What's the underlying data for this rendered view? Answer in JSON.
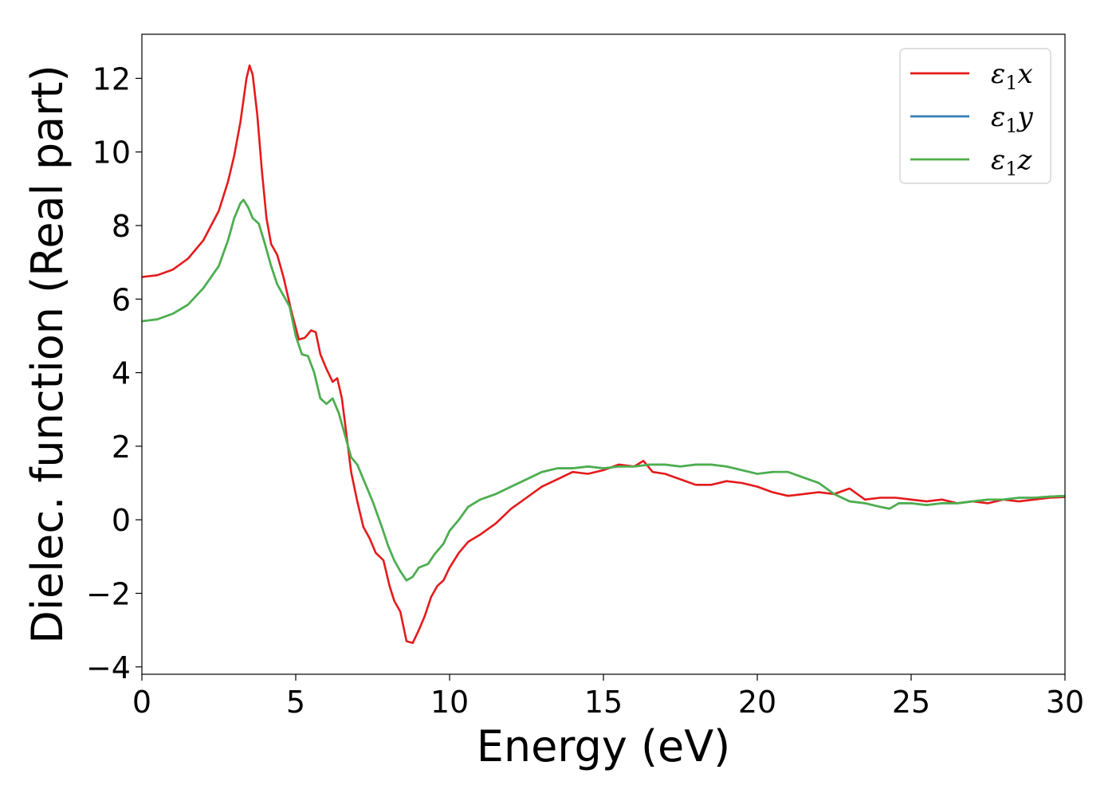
{
  "chart_data": {
    "type": "line",
    "xlabel": "Energy (eV)",
    "ylabel": "Dielec. function (Real part)",
    "xlim": [
      0,
      30
    ],
    "ylim": [
      -4.2,
      13.2
    ],
    "xticks": [
      0,
      5,
      10,
      15,
      20,
      25,
      30
    ],
    "yticks": [
      -4,
      -2,
      0,
      2,
      4,
      6,
      8,
      10,
      12
    ],
    "xtick_labels": [
      "0",
      "5",
      "10",
      "15",
      "20",
      "25",
      "30"
    ],
    "ytick_labels": [
      "−4",
      "−2",
      "0",
      "2",
      "4",
      "6",
      "8",
      "10",
      "12"
    ],
    "grid": false,
    "legend_position": "top-right",
    "series": [
      {
        "name": "ε1x",
        "legend_base": "ε",
        "legend_sub": "1",
        "legend_suffix": "x",
        "color": "#e41a1c",
        "points": [
          [
            0,
            6.6
          ],
          [
            0.5,
            6.65
          ],
          [
            1.0,
            6.8
          ],
          [
            1.5,
            7.1
          ],
          [
            2.0,
            7.6
          ],
          [
            2.5,
            8.4
          ],
          [
            2.8,
            9.2
          ],
          [
            3.0,
            9.9
          ],
          [
            3.2,
            10.8
          ],
          [
            3.4,
            12.0
          ],
          [
            3.5,
            12.35
          ],
          [
            3.6,
            12.1
          ],
          [
            3.75,
            11.0
          ],
          [
            3.9,
            9.5
          ],
          [
            4.05,
            8.2
          ],
          [
            4.2,
            7.5
          ],
          [
            4.4,
            7.2
          ],
          [
            4.6,
            6.6
          ],
          [
            4.85,
            5.7
          ],
          [
            5.1,
            4.9
          ],
          [
            5.3,
            4.95
          ],
          [
            5.5,
            5.15
          ],
          [
            5.65,
            5.1
          ],
          [
            5.8,
            4.5
          ],
          [
            6.0,
            4.1
          ],
          [
            6.2,
            3.75
          ],
          [
            6.35,
            3.85
          ],
          [
            6.5,
            3.3
          ],
          [
            6.65,
            2.3
          ],
          [
            6.8,
            1.3
          ],
          [
            7.0,
            0.5
          ],
          [
            7.2,
            -0.2
          ],
          [
            7.4,
            -0.5
          ],
          [
            7.6,
            -0.9
          ],
          [
            7.85,
            -1.1
          ],
          [
            8.05,
            -1.8
          ],
          [
            8.2,
            -2.2
          ],
          [
            8.4,
            -2.5
          ],
          [
            8.6,
            -3.3
          ],
          [
            8.8,
            -3.35
          ],
          [
            9.0,
            -3.0
          ],
          [
            9.2,
            -2.6
          ],
          [
            9.4,
            -2.1
          ],
          [
            9.6,
            -1.8
          ],
          [
            9.8,
            -1.65
          ],
          [
            10.0,
            -1.3
          ],
          [
            10.3,
            -0.9
          ],
          [
            10.6,
            -0.6
          ],
          [
            11.0,
            -0.4
          ],
          [
            11.5,
            -0.1
          ],
          [
            12.0,
            0.3
          ],
          [
            12.5,
            0.6
          ],
          [
            13.0,
            0.9
          ],
          [
            13.5,
            1.1
          ],
          [
            14.0,
            1.3
          ],
          [
            14.5,
            1.25
          ],
          [
            15.0,
            1.35
          ],
          [
            15.5,
            1.5
          ],
          [
            16.0,
            1.45
          ],
          [
            16.3,
            1.6
          ],
          [
            16.6,
            1.3
          ],
          [
            17.0,
            1.25
          ],
          [
            17.5,
            1.1
          ],
          [
            18.0,
            0.95
          ],
          [
            18.5,
            0.95
          ],
          [
            19.0,
            1.05
          ],
          [
            19.5,
            1.0
          ],
          [
            20.0,
            0.9
          ],
          [
            20.5,
            0.75
          ],
          [
            21.0,
            0.65
          ],
          [
            21.5,
            0.7
          ],
          [
            22.0,
            0.75
          ],
          [
            22.5,
            0.7
          ],
          [
            23.0,
            0.85
          ],
          [
            23.5,
            0.55
          ],
          [
            24.0,
            0.6
          ],
          [
            24.5,
            0.6
          ],
          [
            25.0,
            0.55
          ],
          [
            25.5,
            0.5
          ],
          [
            26.0,
            0.55
          ],
          [
            26.5,
            0.45
          ],
          [
            27.0,
            0.5
          ],
          [
            27.5,
            0.45
          ],
          [
            28.0,
            0.55
          ],
          [
            28.5,
            0.5
          ],
          [
            29.0,
            0.55
          ],
          [
            29.5,
            0.6
          ],
          [
            30.0,
            0.62
          ]
        ]
      },
      {
        "name": "ε1y",
        "legend_base": "ε",
        "legend_sub": "1",
        "legend_suffix": "y",
        "color": "#377eb8",
        "points": [
          [
            0,
            5.4
          ],
          [
            0.5,
            5.45
          ],
          [
            1.0,
            5.6
          ],
          [
            1.5,
            5.85
          ],
          [
            2.0,
            6.3
          ],
          [
            2.5,
            6.9
          ],
          [
            2.8,
            7.6
          ],
          [
            3.0,
            8.2
          ],
          [
            3.2,
            8.6
          ],
          [
            3.3,
            8.7
          ],
          [
            3.45,
            8.5
          ],
          [
            3.6,
            8.2
          ],
          [
            3.8,
            8.05
          ],
          [
            4.0,
            7.5
          ],
          [
            4.2,
            6.9
          ],
          [
            4.4,
            6.4
          ],
          [
            4.6,
            6.1
          ],
          [
            4.8,
            5.8
          ],
          [
            5.0,
            5.0
          ],
          [
            5.2,
            4.5
          ],
          [
            5.4,
            4.45
          ],
          [
            5.6,
            4.0
          ],
          [
            5.8,
            3.3
          ],
          [
            6.0,
            3.15
          ],
          [
            6.2,
            3.3
          ],
          [
            6.4,
            2.9
          ],
          [
            6.6,
            2.3
          ],
          [
            6.8,
            1.7
          ],
          [
            7.0,
            1.5
          ],
          [
            7.2,
            1.1
          ],
          [
            7.5,
            0.5
          ],
          [
            7.8,
            -0.2
          ],
          [
            8.0,
            -0.7
          ],
          [
            8.2,
            -1.1
          ],
          [
            8.4,
            -1.4
          ],
          [
            8.6,
            -1.65
          ],
          [
            8.8,
            -1.55
          ],
          [
            9.0,
            -1.3
          ],
          [
            9.3,
            -1.2
          ],
          [
            9.5,
            -0.95
          ],
          [
            9.8,
            -0.65
          ],
          [
            10.0,
            -0.3
          ],
          [
            10.3,
            0.0
          ],
          [
            10.6,
            0.35
          ],
          [
            11.0,
            0.55
          ],
          [
            11.5,
            0.7
          ],
          [
            12.0,
            0.9
          ],
          [
            12.5,
            1.1
          ],
          [
            13.0,
            1.3
          ],
          [
            13.5,
            1.4
          ],
          [
            14.0,
            1.4
          ],
          [
            14.5,
            1.45
          ],
          [
            15.0,
            1.4
          ],
          [
            15.5,
            1.45
          ],
          [
            16.0,
            1.45
          ],
          [
            16.5,
            1.5
          ],
          [
            17.0,
            1.5
          ],
          [
            17.5,
            1.45
          ],
          [
            18.0,
            1.5
          ],
          [
            18.5,
            1.5
          ],
          [
            19.0,
            1.45
          ],
          [
            19.5,
            1.35
          ],
          [
            20.0,
            1.25
          ],
          [
            20.5,
            1.3
          ],
          [
            21.0,
            1.3
          ],
          [
            21.5,
            1.15
          ],
          [
            22.0,
            1.0
          ],
          [
            22.5,
            0.7
          ],
          [
            23.0,
            0.5
          ],
          [
            23.5,
            0.45
          ],
          [
            24.0,
            0.35
          ],
          [
            24.3,
            0.3
          ],
          [
            24.6,
            0.45
          ],
          [
            25.0,
            0.45
          ],
          [
            25.5,
            0.4
          ],
          [
            26.0,
            0.45
          ],
          [
            26.5,
            0.45
          ],
          [
            27.0,
            0.5
          ],
          [
            27.5,
            0.55
          ],
          [
            28.0,
            0.55
          ],
          [
            28.5,
            0.6
          ],
          [
            29.0,
            0.6
          ],
          [
            29.5,
            0.63
          ],
          [
            30.0,
            0.65
          ]
        ]
      },
      {
        "name": "ε1z",
        "legend_base": "ε",
        "legend_sub": "1",
        "legend_suffix": "z",
        "color": "#4daf4a",
        "points": [
          [
            0,
            5.4
          ],
          [
            0.5,
            5.45
          ],
          [
            1.0,
            5.6
          ],
          [
            1.5,
            5.85
          ],
          [
            2.0,
            6.3
          ],
          [
            2.5,
            6.9
          ],
          [
            2.8,
            7.6
          ],
          [
            3.0,
            8.2
          ],
          [
            3.2,
            8.6
          ],
          [
            3.3,
            8.7
          ],
          [
            3.45,
            8.5
          ],
          [
            3.6,
            8.2
          ],
          [
            3.8,
            8.05
          ],
          [
            4.0,
            7.5
          ],
          [
            4.2,
            6.9
          ],
          [
            4.4,
            6.4
          ],
          [
            4.6,
            6.1
          ],
          [
            4.8,
            5.8
          ],
          [
            5.0,
            5.0
          ],
          [
            5.2,
            4.5
          ],
          [
            5.4,
            4.45
          ],
          [
            5.6,
            4.0
          ],
          [
            5.8,
            3.3
          ],
          [
            6.0,
            3.15
          ],
          [
            6.2,
            3.3
          ],
          [
            6.4,
            2.9
          ],
          [
            6.6,
            2.3
          ],
          [
            6.8,
            1.7
          ],
          [
            7.0,
            1.5
          ],
          [
            7.2,
            1.1
          ],
          [
            7.5,
            0.5
          ],
          [
            7.8,
            -0.2
          ],
          [
            8.0,
            -0.7
          ],
          [
            8.2,
            -1.1
          ],
          [
            8.4,
            -1.4
          ],
          [
            8.6,
            -1.65
          ],
          [
            8.8,
            -1.55
          ],
          [
            9.0,
            -1.3
          ],
          [
            9.3,
            -1.2
          ],
          [
            9.5,
            -0.95
          ],
          [
            9.8,
            -0.65
          ],
          [
            10.0,
            -0.3
          ],
          [
            10.3,
            0.0
          ],
          [
            10.6,
            0.35
          ],
          [
            11.0,
            0.55
          ],
          [
            11.5,
            0.7
          ],
          [
            12.0,
            0.9
          ],
          [
            12.5,
            1.1
          ],
          [
            13.0,
            1.3
          ],
          [
            13.5,
            1.4
          ],
          [
            14.0,
            1.4
          ],
          [
            14.5,
            1.45
          ],
          [
            15.0,
            1.4
          ],
          [
            15.5,
            1.45
          ],
          [
            16.0,
            1.45
          ],
          [
            16.5,
            1.5
          ],
          [
            17.0,
            1.5
          ],
          [
            17.5,
            1.45
          ],
          [
            18.0,
            1.5
          ],
          [
            18.5,
            1.5
          ],
          [
            19.0,
            1.45
          ],
          [
            19.5,
            1.35
          ],
          [
            20.0,
            1.25
          ],
          [
            20.5,
            1.3
          ],
          [
            21.0,
            1.3
          ],
          [
            21.5,
            1.15
          ],
          [
            22.0,
            1.0
          ],
          [
            22.5,
            0.7
          ],
          [
            23.0,
            0.5
          ],
          [
            23.5,
            0.45
          ],
          [
            24.0,
            0.35
          ],
          [
            24.3,
            0.3
          ],
          [
            24.6,
            0.45
          ],
          [
            25.0,
            0.45
          ],
          [
            25.5,
            0.4
          ],
          [
            26.0,
            0.45
          ],
          [
            26.5,
            0.45
          ],
          [
            27.0,
            0.5
          ],
          [
            27.5,
            0.55
          ],
          [
            28.0,
            0.55
          ],
          [
            28.5,
            0.6
          ],
          [
            29.0,
            0.6
          ],
          [
            29.5,
            0.63
          ],
          [
            30.0,
            0.65
          ]
        ]
      }
    ]
  }
}
